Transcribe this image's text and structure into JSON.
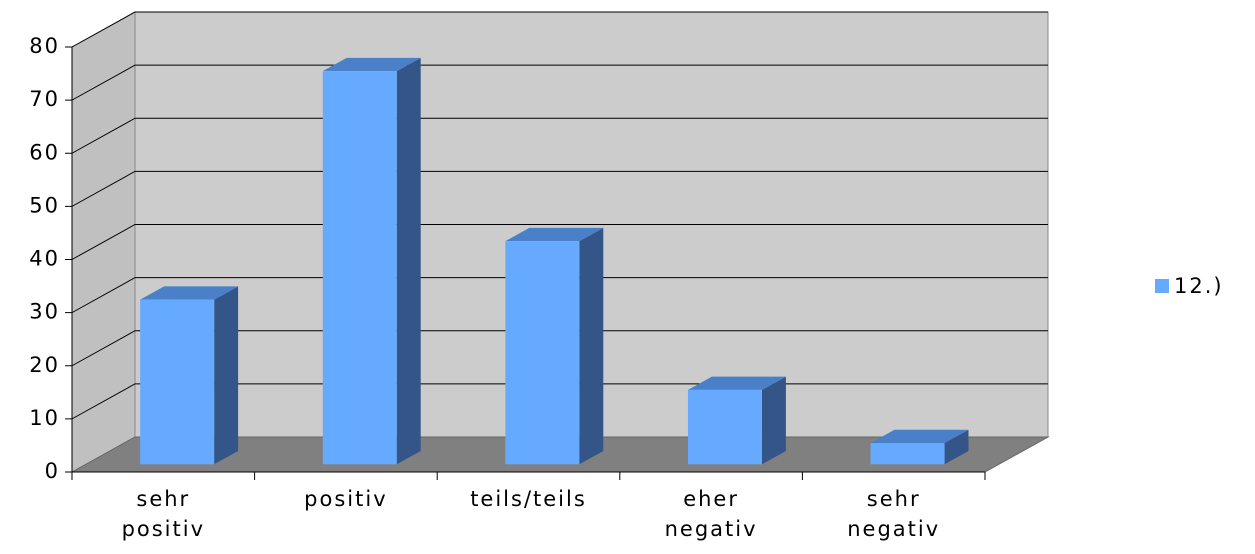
{
  "chart_data": {
    "type": "bar3d",
    "categories": [
      "sehr positiv",
      "positiv",
      "teils/teils",
      "eher negativ",
      "sehr negativ"
    ],
    "series": [
      {
        "name": "12.)",
        "color": "#66aaff",
        "values": [
          31,
          74,
          42,
          14,
          4
        ]
      }
    ],
    "ylim": [
      0,
      80
    ],
    "yticks": [
      0,
      10,
      20,
      30,
      40,
      50,
      60,
      70,
      80
    ],
    "grid": true,
    "legend": "right"
  }
}
